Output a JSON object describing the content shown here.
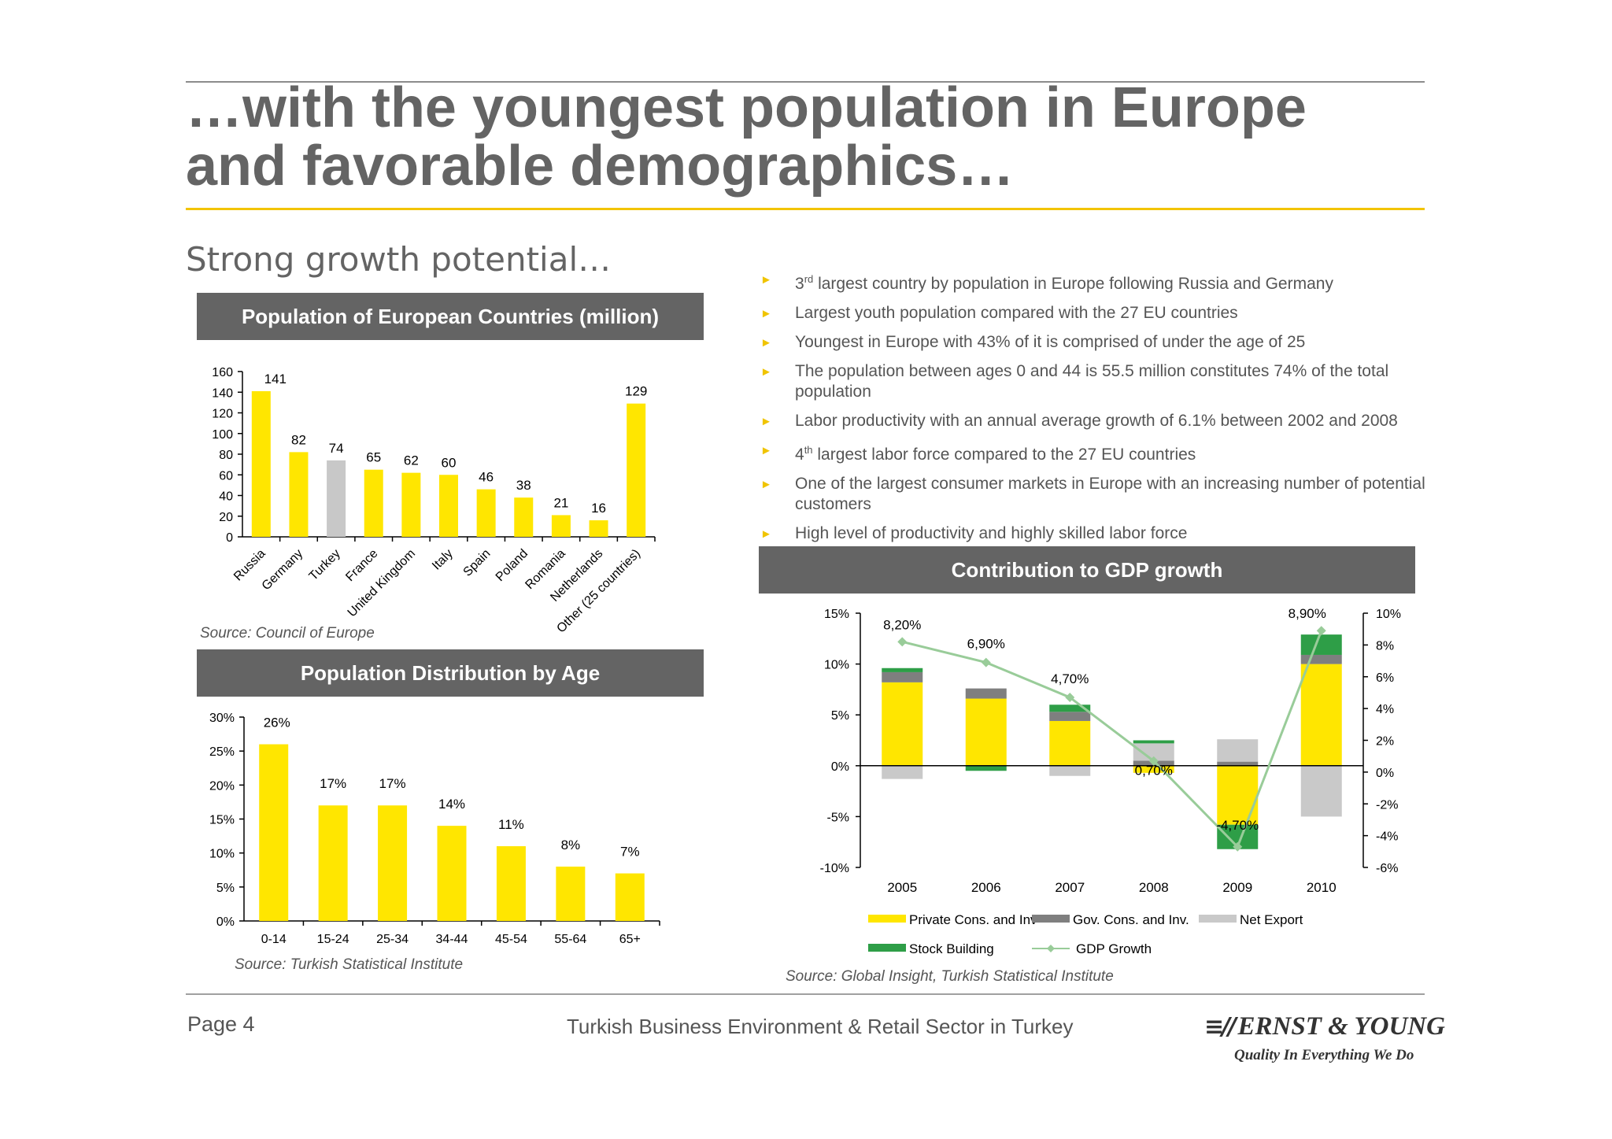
{
  "title_line1": "…with the youngest population in Europe",
  "title_line2": "and favorable demographics…",
  "subtitle": "Strong growth potential…",
  "bullets": [
    {
      "pre": "3",
      "sup": "rd",
      "text": " largest country by population in Europe following Russia and Germany"
    },
    {
      "pre": "",
      "sup": "",
      "text": "Largest youth population compared with the 27 EU countries"
    },
    {
      "pre": "",
      "sup": "",
      "text": "Youngest in Europe with 43% of it is comprised of under the age of 25"
    },
    {
      "pre": "",
      "sup": "",
      "text": "The population between ages 0 and 44 is 55.5 million constitutes 74% of the total population"
    },
    {
      "pre": "",
      "sup": "",
      "text": "Labor productivity with an annual average growth of 6.1% between 2002 and 2008"
    },
    {
      "pre": "4",
      "sup": "th",
      "text": " largest labor force compared to the 27 EU countries"
    },
    {
      "pre": "",
      "sup": "",
      "text": "One of the largest consumer markets in Europe with an increasing number of potential customers"
    },
    {
      "pre": "",
      "sup": "",
      "text": "High level of productivity and highly skilled labor force"
    }
  ],
  "colors": {
    "yellow": "#ffe600",
    "gray_bar": "#c8c8c8",
    "dark_gray": "#7f7f7f",
    "light_gray": "#c9c9c9",
    "green": "#2e9e47",
    "line_green": "#99cc99",
    "header": "#646464",
    "accent_rule": "#f2c400"
  },
  "chart_data": [
    {
      "type": "bar",
      "title": "Population of European Countries (million)",
      "categories": [
        "Russia",
        "Germany",
        "Turkey",
        "France",
        "United Kingdom",
        "Italy",
        "Spain",
        "Poland",
        "Romania",
        "Netherlands",
        "Other (25 countries)"
      ],
      "values": [
        141,
        82,
        74,
        65,
        62,
        60,
        46,
        38,
        21,
        16,
        129
      ],
      "highlight": "Turkey",
      "ylim": [
        0,
        160
      ],
      "yticks": [
        "0",
        "20",
        "40",
        "60",
        "80",
        "100",
        "120",
        "140",
        "160"
      ],
      "source": "Source: Council of Europe"
    },
    {
      "type": "bar",
      "title": "Population Distribution by Age",
      "categories": [
        "0-14",
        "15-24",
        "25-34",
        "34-44",
        "45-54",
        "55-64",
        "65+"
      ],
      "values": [
        26,
        17,
        17,
        14,
        11,
        8,
        7
      ],
      "labels": [
        "26%",
        "17%",
        "17%",
        "14%",
        "11%",
        "8%",
        "7%"
      ],
      "ylim": [
        0,
        30
      ],
      "yticks": [
        "0%",
        "5%",
        "10%",
        "15%",
        "20%",
        "25%",
        "30%"
      ],
      "source": "Source: Turkish Statistical Institute"
    },
    {
      "type": "bar",
      "stacked": true,
      "title": "Contribution to GDP growth",
      "categories": [
        "2005",
        "2006",
        "2007",
        "2008",
        "2009",
        "2010"
      ],
      "series": [
        {
          "name": "Private Cons. and Inv",
          "values": [
            8.2,
            6.6,
            4.4,
            -0.7,
            -5.8,
            10.0
          ]
        },
        {
          "name": "Gov. Cons. and Inv.",
          "values": [
            1.0,
            1.0,
            0.9,
            0.5,
            0.4,
            0.9
          ]
        },
        {
          "name": "Net Export",
          "values": [
            -1.3,
            0,
            -1.0,
            1.7,
            2.2,
            -5.0
          ]
        },
        {
          "name": "Stock Building",
          "values": [
            0.4,
            -0.5,
            0.7,
            0.3,
            -2.4,
            2.0
          ]
        },
        {
          "name": "GDP Growth",
          "axis": "right",
          "values": [
            8.2,
            6.9,
            4.7,
            0.7,
            -4.7,
            8.9
          ]
        }
      ],
      "gdp_labels": [
        "8,20%",
        "6,90%",
        "4,70%",
        "0,70%",
        "-4,70%",
        "8,90%"
      ],
      "ylim_left": [
        -10,
        15
      ],
      "yticks_left": [
        "-10%",
        "-5%",
        "0%",
        "5%",
        "10%",
        "15%"
      ],
      "ylim_right": [
        -6,
        10
      ],
      "yticks_right": [
        "-6%",
        "-4%",
        "-2%",
        "0%",
        "2%",
        "4%",
        "6%",
        "8%",
        "10%"
      ],
      "legend": "bottom",
      "source": "Source: Global Insight, Turkish Statistical Institute"
    }
  ],
  "footer": {
    "page": "Page 4",
    "center": "Turkish Business Environment & Retail Sector in Turkey",
    "logo_mark": "≡//",
    "logo_name": "ERNST & YOUNG",
    "logo_tag": "Quality In Everything We Do"
  }
}
